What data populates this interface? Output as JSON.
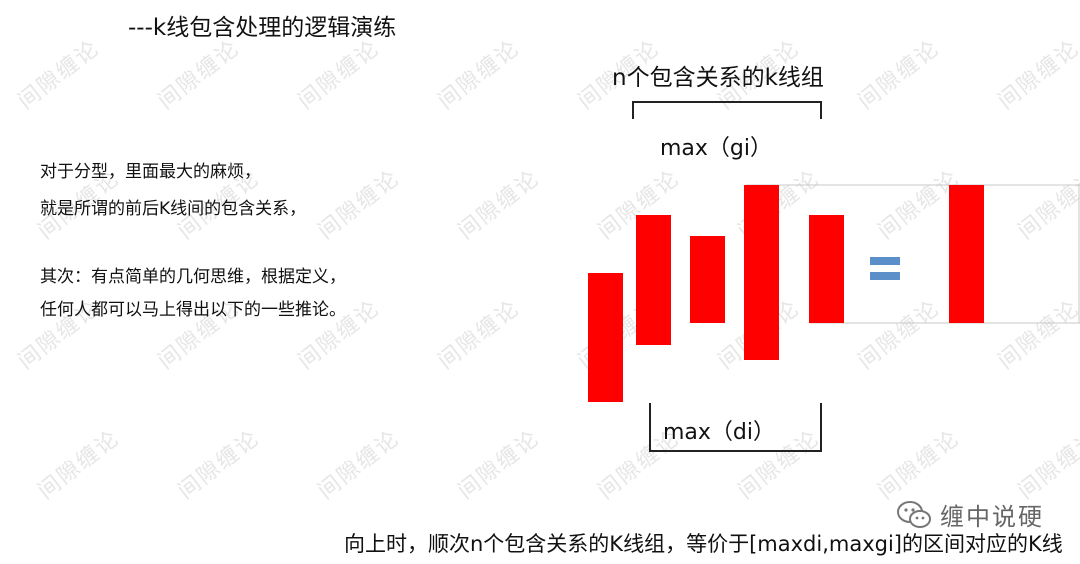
{
  "title": "---k线包含处理的逻辑演练",
  "diagram": {
    "group_title": "n个包含关系的k线组",
    "max_gi_label": "max（gi）",
    "max_di_label": "max（di）",
    "equals_symbol": "=",
    "bar_color": "#ff0000",
    "equals_color": "#5b8fc9",
    "bars": [
      {
        "label": "bar-1"
      },
      {
        "label": "bar-2"
      },
      {
        "label": "bar-3"
      },
      {
        "label": "bar-4"
      },
      {
        "label": "bar-5"
      },
      {
        "label": "result-bar"
      }
    ]
  },
  "notes": [
    "对于分型，里面最大的麻烦，",
    "就是所谓的前后K线间的包含关系，",
    "其次：有点简单的几何思维，根据定义，",
    "任何人都可以马上得出以下的一些推论。"
  ],
  "conclusion": "向上时，顺次n个包含关系的K线组，等价于[maxdi,maxgi]的区间对应的K线",
  "watermark": "间隙缠论",
  "brand": {
    "name": "缠中说硬",
    "icon": "wechat-icon"
  }
}
